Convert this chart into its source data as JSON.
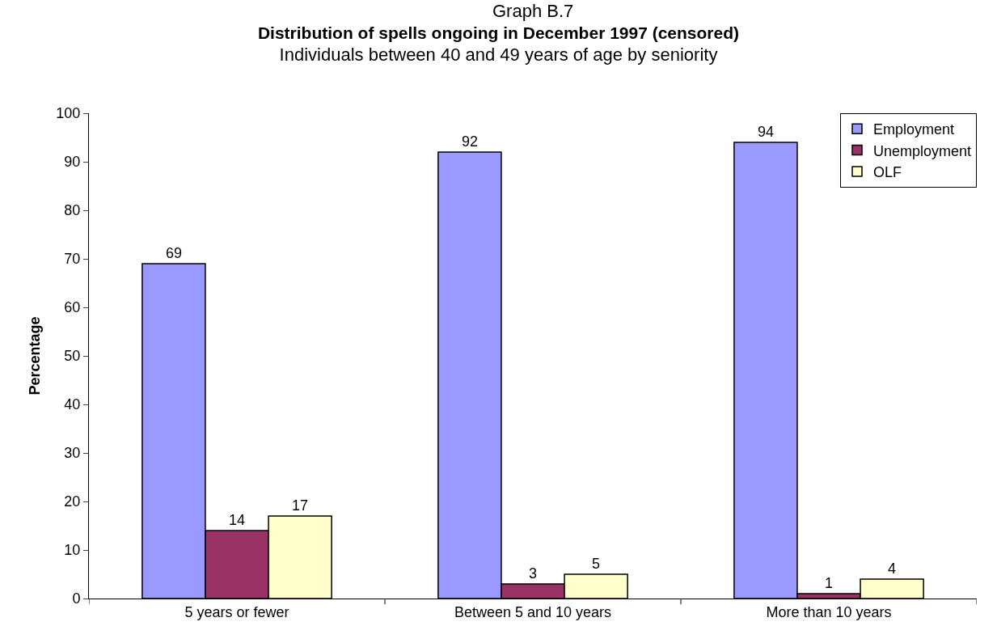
{
  "chart_data": {
    "type": "bar",
    "title": "Distribution of spells ongoing in December 1997 (censored)",
    "subtitle": "Individuals between 40 and 49 years of age by seniority",
    "annotations": [
      "Graph B.7"
    ],
    "ylabel": "Percentage",
    "categories": [
      "5 years or fewer",
      "Between 5 and 10 years",
      "More than 10 years"
    ],
    "series": [
      {
        "name": "Employment",
        "color": "#9999ff",
        "values": [
          69,
          92,
          94
        ]
      },
      {
        "name": "Unemployment",
        "color": "#993366",
        "values": [
          14,
          3,
          1
        ]
      },
      {
        "name": "OLF",
        "color": "#ffffcc",
        "values": [
          17,
          5,
          4
        ]
      }
    ],
    "ylim": [
      0,
      100
    ],
    "yticks": [
      0,
      10,
      20,
      30,
      40,
      50,
      60,
      70,
      80,
      90,
      100
    ],
    "legend": "top right",
    "data_labels": true
  }
}
